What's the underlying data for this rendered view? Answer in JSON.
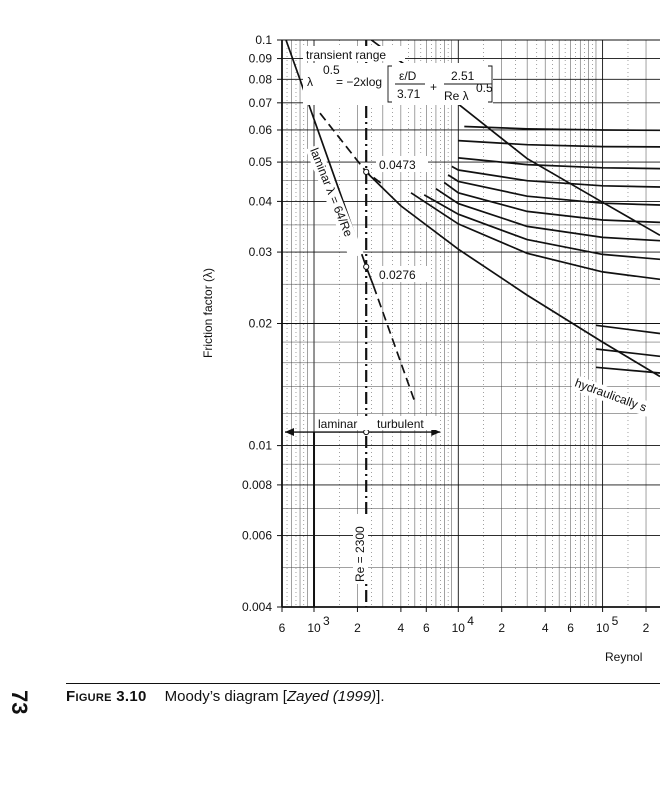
{
  "chart_data": {
    "type": "line",
    "title": "",
    "xlabel": "Reynol",
    "ylabel": "Friction factor (λ)",
    "x_scale": "log",
    "y_scale": "log",
    "xlim": [
      600,
      250000
    ],
    "ylim": [
      0.004,
      0.1
    ],
    "y_ticks": [
      {
        "value": 0.1,
        "label": "0.1"
      },
      {
        "value": 0.09,
        "label": "0.09"
      },
      {
        "value": 0.08,
        "label": "0.08"
      },
      {
        "value": 0.07,
        "label": "0.07"
      },
      {
        "value": 0.06,
        "label": "0.06"
      },
      {
        "value": 0.05,
        "label": "0.05"
      },
      {
        "value": 0.04,
        "label": "0.04"
      },
      {
        "value": 0.03,
        "label": "0.03"
      },
      {
        "value": 0.02,
        "label": "0.02"
      },
      {
        "value": 0.01,
        "label": "0.01"
      },
      {
        "value": 0.008,
        "label": "0.008"
      },
      {
        "value": 0.006,
        "label": "0.006"
      },
      {
        "value": 0.004,
        "label": "0.004"
      }
    ],
    "x_ticks": [
      {
        "value": 600,
        "label": "6"
      },
      {
        "value": 1000,
        "label": "10",
        "sup": "3"
      },
      {
        "value": 2000,
        "label": "2"
      },
      {
        "value": 4000,
        "label": "4"
      },
      {
        "value": 6000,
        "label": "6"
      },
      {
        "value": 10000,
        "label": "10",
        "sup": "4"
      },
      {
        "value": 20000,
        "label": "2"
      },
      {
        "value": 40000,
        "label": "4"
      },
      {
        "value": 60000,
        "label": "6"
      },
      {
        "value": 100000,
        "label": "10",
        "sup": "5"
      },
      {
        "value": 200000,
        "label": "2"
      }
    ],
    "series": [
      {
        "style": "solid",
        "points": [
          [
            640,
            0.1
          ],
          [
            2300,
            0.0276
          ],
          [
            2580,
            0.0248
          ]
        ]
      },
      {
        "style": "dashed",
        "points": [
          [
            2580,
            0.0248
          ],
          [
            5000,
            0.0128
          ]
        ]
      },
      {
        "style": "dashed",
        "points": [
          [
            1100,
            0.066
          ],
          [
            2300,
            0.0473
          ],
          [
            3000,
            0.044
          ]
        ]
      },
      {
        "style": "solid",
        "points": [
          [
            2300,
            0.0473
          ],
          [
            4000,
            0.039
          ],
          [
            10000,
            0.0305
          ],
          [
            30000,
            0.0235
          ],
          [
            100000,
            0.018
          ],
          [
            250000,
            0.0148
          ]
        ]
      },
      {
        "style": "solid",
        "points": [
          [
            4700,
            0.042
          ],
          [
            10000,
            0.0352
          ],
          [
            30000,
            0.0298
          ],
          [
            100000,
            0.0268
          ],
          [
            250000,
            0.0257
          ]
        ]
      },
      {
        "style": "solid",
        "points": [
          [
            5800,
            0.0415
          ],
          [
            10000,
            0.0372
          ],
          [
            30000,
            0.0322
          ],
          [
            100000,
            0.0296
          ],
          [
            250000,
            0.0288
          ]
        ]
      },
      {
        "style": "solid",
        "points": [
          [
            7000,
            0.043
          ],
          [
            10000,
            0.0395
          ],
          [
            30000,
            0.0347
          ],
          [
            100000,
            0.0326
          ],
          [
            250000,
            0.032
          ]
        ]
      },
      {
        "style": "solid",
        "points": [
          [
            8000,
            0.0445
          ],
          [
            10000,
            0.042
          ],
          [
            30000,
            0.0378
          ],
          [
            100000,
            0.036
          ],
          [
            250000,
            0.0355
          ]
        ]
      },
      {
        "style": "solid",
        "points": [
          [
            8500,
            0.0465
          ],
          [
            10000,
            0.0448
          ],
          [
            30000,
            0.0412
          ],
          [
            100000,
            0.0396
          ],
          [
            250000,
            0.0392
          ]
        ]
      },
      {
        "style": "solid",
        "points": [
          [
            9000,
            0.0488
          ],
          [
            10000,
            0.0478
          ],
          [
            30000,
            0.045
          ],
          [
            100000,
            0.0437
          ],
          [
            250000,
            0.0434
          ]
        ]
      },
      {
        "style": "solid",
        "points": [
          [
            10000,
            0.0512
          ],
          [
            30000,
            0.0493
          ],
          [
            100000,
            0.0484
          ],
          [
            250000,
            0.0482
          ]
        ]
      },
      {
        "style": "solid",
        "points": [
          [
            10000,
            0.0565
          ],
          [
            30000,
            0.0552
          ],
          [
            100000,
            0.0546
          ],
          [
            250000,
            0.0545
          ]
        ]
      },
      {
        "style": "solid",
        "points": [
          [
            11000,
            0.0612
          ],
          [
            30000,
            0.0604
          ],
          [
            100000,
            0.06
          ],
          [
            250000,
            0.0599
          ]
        ]
      },
      {
        "style": "solid",
        "points": [
          [
            2500,
            0.1
          ],
          [
            10000,
            0.0695
          ],
          [
            30000,
            0.051
          ],
          [
            100000,
            0.0398
          ],
          [
            250000,
            0.033
          ]
        ]
      },
      {
        "style": "solid",
        "points": [
          [
            90000,
            0.0198
          ],
          [
            250000,
            0.0189
          ]
        ]
      },
      {
        "style": "solid",
        "points": [
          [
            90000,
            0.0173
          ],
          [
            250000,
            0.0166
          ]
        ]
      },
      {
        "style": "solid",
        "points": [
          [
            90000,
            0.0156
          ],
          [
            250000,
            0.0151
          ]
        ]
      }
    ],
    "reference_lines": [
      {
        "orientation": "vertical",
        "value": 2300,
        "style": "dashdot",
        "label": "Re = 2300"
      },
      {
        "orientation": "vertical",
        "value": 1000,
        "style": "solid"
      },
      {
        "orientation": "horizontal",
        "value": 0.0108,
        "style": "arrow",
        "from": 600,
        "to": 7500
      }
    ],
    "points": [
      {
        "x": 2300,
        "y": 0.0473,
        "label": "0.0473"
      },
      {
        "x": 2300,
        "y": 0.0276,
        "label": "0.0276"
      },
      {
        "x": 2300,
        "y": 0.0108
      }
    ],
    "annotations": {
      "transient": "transient range",
      "laminar_line": "laminar λ = 64/Re",
      "laminar": "laminar",
      "turbulent": "turbulent",
      "hydraulically": "hydraulically s",
      "re": "Re = 2300"
    },
    "formula": {
      "lhs_lambda": "λ",
      "lhs_exp": "0.5",
      "equals": "= −2xlog",
      "frac1_num": "ε/D",
      "frac1_den": "3.71",
      "plus": "+",
      "frac2_num": "2.51",
      "frac2_den_re": "Re λ",
      "frac2_den_exp": "0.5"
    }
  },
  "page": {
    "page_number": "73",
    "figure_label": "Figure 3.10",
    "caption_text": "Moody’s diagram [",
    "caption_citation": "Zayed (1999)",
    "caption_end": "]."
  }
}
